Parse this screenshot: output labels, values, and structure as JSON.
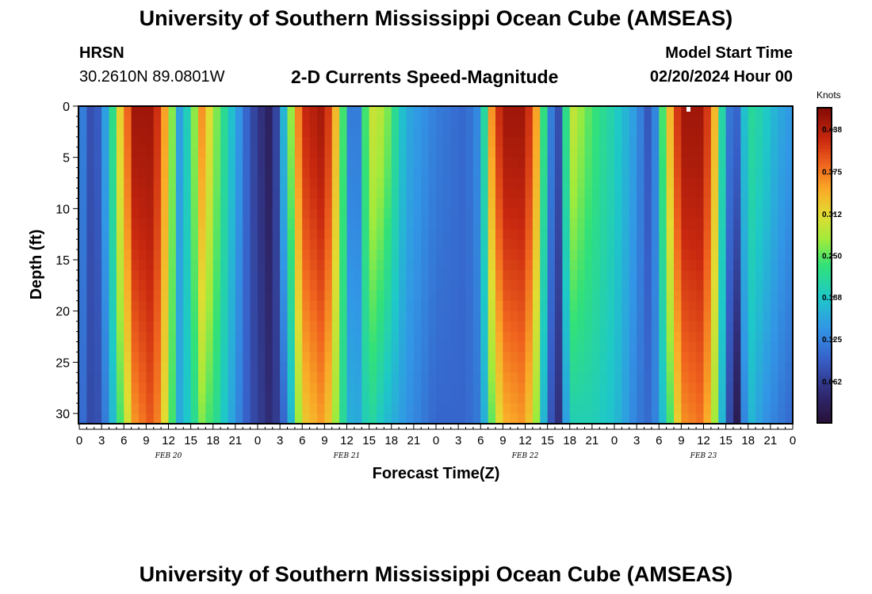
{
  "header": {
    "title": "University of Southern Mississippi Ocean Cube (AMSEAS)",
    "station": "HRSN",
    "coordinates": "30.2610N  89.0801W",
    "plot_title": "2-D Currents Speed-Magnitude",
    "model_start_label": "Model Start Time",
    "model_start_value": "02/20/2024 Hour 00"
  },
  "footer": {
    "title": "University of Southern Mississippi Ocean Cube (AMSEAS)"
  },
  "chart_data": {
    "type": "heatmap",
    "title": "2-D Currents Speed-Magnitude",
    "xlabel": "Forecast Time(Z)",
    "ylabel": "Depth (ft)",
    "x_range": [
      0,
      96
    ],
    "y_range": [
      0,
      31
    ],
    "y_ticks": [
      "0",
      "5",
      "10",
      "15",
      "20",
      "25",
      "30"
    ],
    "x_ticks": [
      "0",
      "3",
      "6",
      "9",
      "12",
      "15",
      "18",
      "21",
      "0",
      "3",
      "6",
      "9",
      "12",
      "15",
      "18",
      "21",
      "0",
      "3",
      "6",
      "9",
      "12",
      "15",
      "18",
      "21",
      "0",
      "3",
      "6",
      "9",
      "12",
      "15",
      "18",
      "21",
      "0"
    ],
    "date_labels": [
      {
        "label": "FEB 20",
        "hour": 12
      },
      {
        "label": "FEB 21",
        "hour": 36
      },
      {
        "label": "FEB 22",
        "hour": 60
      },
      {
        "label": "FEB 23",
        "hour": 84
      }
    ],
    "colorbar": {
      "label": "Knots",
      "min": 0,
      "max": 0.47,
      "ticks": [
        "0.438",
        "0.375",
        "0.312",
        "0.250",
        "0.188",
        "0.125",
        "0.062"
      ]
    },
    "speed_profiles_knots": [
      {
        "hour": 0,
        "surface": 0.14,
        "bottom": 0.12
      },
      {
        "hour": 2,
        "surface": 0.06,
        "bottom": 0.06
      },
      {
        "hour": 4,
        "surface": 0.18,
        "bottom": 0.14
      },
      {
        "hour": 5.5,
        "surface": 0.32,
        "bottom": 0.24
      },
      {
        "hour": 7.5,
        "surface": 0.45,
        "bottom": 0.36
      },
      {
        "hour": 10,
        "surface": 0.45,
        "bottom": 0.4
      },
      {
        "hour": 12,
        "surface": 0.32,
        "bottom": 0.28
      },
      {
        "hour": 13.5,
        "surface": 0.15,
        "bottom": 0.16
      },
      {
        "hour": 15,
        "surface": 0.22,
        "bottom": 0.2
      },
      {
        "hour": 16.5,
        "surface": 0.36,
        "bottom": 0.26
      },
      {
        "hour": 18.5,
        "surface": 0.26,
        "bottom": 0.22
      },
      {
        "hour": 21,
        "surface": 0.16,
        "bottom": 0.14
      },
      {
        "hour": 23,
        "surface": 0.08,
        "bottom": 0.08
      },
      {
        "hour": 26,
        "surface": 0.02,
        "bottom": 0.04
      },
      {
        "hour": 28,
        "surface": 0.22,
        "bottom": 0.12
      },
      {
        "hour": 30,
        "surface": 0.42,
        "bottom": 0.32
      },
      {
        "hour": 33,
        "surface": 0.45,
        "bottom": 0.36
      },
      {
        "hour": 35,
        "surface": 0.3,
        "bottom": 0.24
      },
      {
        "hour": 37,
        "surface": 0.06,
        "bottom": 0.14
      },
      {
        "hour": 39,
        "surface": 0.3,
        "bottom": 0.22
      },
      {
        "hour": 41,
        "surface": 0.28,
        "bottom": 0.18
      },
      {
        "hour": 44,
        "surface": 0.16,
        "bottom": 0.14
      },
      {
        "hour": 48,
        "surface": 0.12,
        "bottom": 0.1
      },
      {
        "hour": 52,
        "surface": 0.1,
        "bottom": 0.1
      },
      {
        "hour": 54,
        "surface": 0.14,
        "bottom": 0.12
      },
      {
        "hour": 55.5,
        "surface": 0.36,
        "bottom": 0.25
      },
      {
        "hour": 57,
        "surface": 0.45,
        "bottom": 0.34
      },
      {
        "hour": 60,
        "surface": 0.45,
        "bottom": 0.36
      },
      {
        "hour": 62,
        "surface": 0.32,
        "bottom": 0.24
      },
      {
        "hour": 63,
        "surface": 0.14,
        "bottom": 0.1
      },
      {
        "hour": 64.5,
        "surface": 0.08,
        "bottom": 0.05
      },
      {
        "hour": 66,
        "surface": 0.3,
        "bottom": 0.2
      },
      {
        "hour": 69,
        "surface": 0.24,
        "bottom": 0.2
      },
      {
        "hour": 72,
        "surface": 0.2,
        "bottom": 0.18
      },
      {
        "hour": 75,
        "surface": 0.14,
        "bottom": 0.12
      },
      {
        "hour": 77,
        "surface": 0.07,
        "bottom": 0.1
      },
      {
        "hour": 79,
        "surface": 0.3,
        "bottom": 0.2
      },
      {
        "hour": 81,
        "surface": 0.45,
        "bottom": 0.36
      },
      {
        "hour": 84,
        "surface": 0.45,
        "bottom": 0.38
      },
      {
        "hour": 86,
        "surface": 0.3,
        "bottom": 0.24
      },
      {
        "hour": 87,
        "surface": 0.12,
        "bottom": 0.1
      },
      {
        "hour": 88.5,
        "surface": 0.1,
        "bottom": 0.02
      },
      {
        "hour": 90,
        "surface": 0.22,
        "bottom": 0.18
      },
      {
        "hour": 92,
        "surface": 0.2,
        "bottom": 0.14
      },
      {
        "hour": 94,
        "surface": 0.16,
        "bottom": 0.12
      },
      {
        "hour": 96,
        "surface": 0.14,
        "bottom": 0.1
      }
    ]
  }
}
